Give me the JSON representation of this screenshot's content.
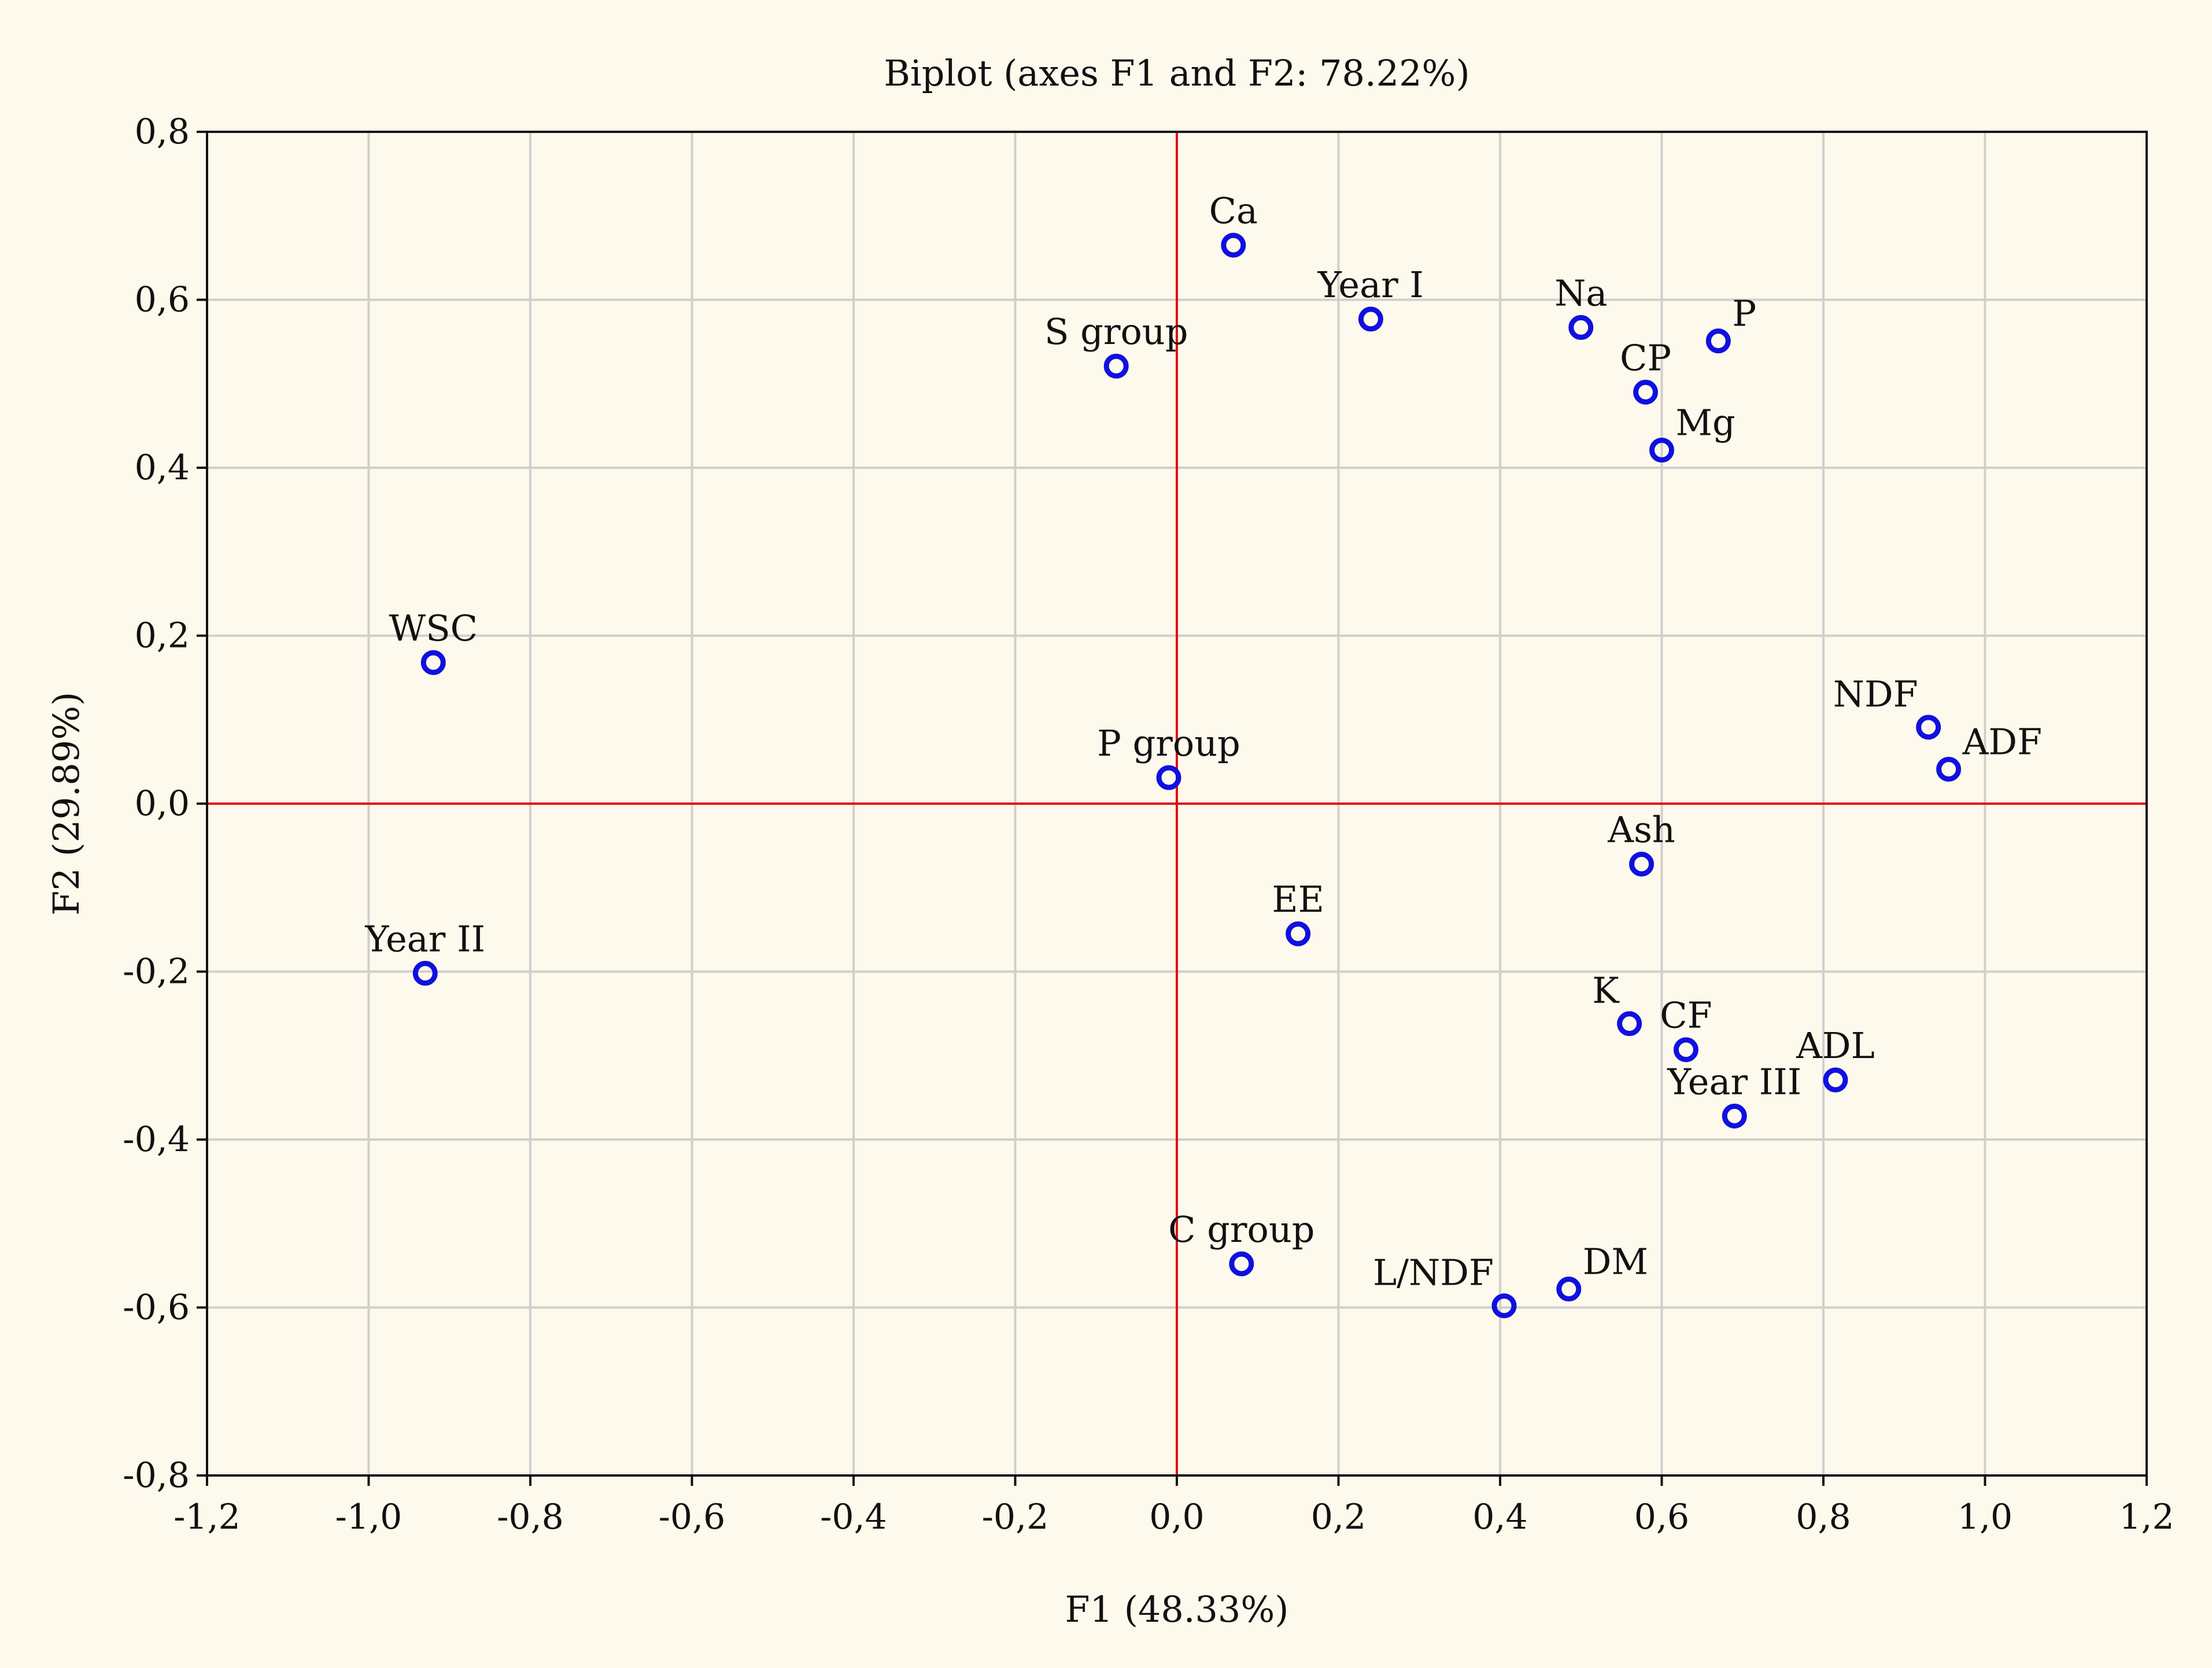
{
  "chart_data": {
    "type": "scatter",
    "title": "Biplot (axes F1 and F2: 78.22%)",
    "xlabel": "F1 (48.33%)",
    "ylabel": "F2 (29.89%)",
    "xlim": [
      -1.2,
      1.2
    ],
    "ylim": [
      -0.8,
      0.8
    ],
    "xticks": [
      -1.2,
      -1.0,
      -0.8,
      -0.6,
      -0.4,
      -0.2,
      0.0,
      0.2,
      0.4,
      0.6,
      0.8,
      1.0,
      1.2
    ],
    "yticks": [
      -0.8,
      -0.6,
      -0.4,
      -0.2,
      0.0,
      0.2,
      0.4,
      0.6,
      0.8
    ],
    "xtick_labels": [
      "-1,2",
      "-1,0",
      "-0,8",
      "-0,6",
      "-0,4",
      "-0,2",
      "0,0",
      "0,2",
      "0,4",
      "0,6",
      "0,8",
      "1,0",
      "1,2"
    ],
    "ytick_labels": [
      "-0,8",
      "-0,6",
      "-0,4",
      "-0,2",
      "0,0",
      "0,2",
      "0,4",
      "0,6",
      "0,8"
    ],
    "grid": true,
    "reference_lines": {
      "x": 0.0,
      "y": 0.0,
      "color": "#e01010"
    },
    "marker_color": "#1010e0",
    "points": [
      {
        "label": "Ca",
        "x": 0.07,
        "y": 0.665,
        "label_pos": "above"
      },
      {
        "label": "Year I",
        "x": 0.24,
        "y": 0.577,
        "label_pos": "above"
      },
      {
        "label": "Na",
        "x": 0.5,
        "y": 0.567,
        "label_pos": "above"
      },
      {
        "label": "P",
        "x": 0.67,
        "y": 0.551,
        "label_pos": "upper-right"
      },
      {
        "label": "CP",
        "x": 0.58,
        "y": 0.49,
        "label_pos": "above"
      },
      {
        "label": "Mg",
        "x": 0.6,
        "y": 0.421,
        "label_pos": "upper-right"
      },
      {
        "label": "S group",
        "x": -0.075,
        "y": 0.521,
        "label_pos": "above"
      },
      {
        "label": "WSC",
        "x": -0.92,
        "y": 0.168,
        "label_pos": "above"
      },
      {
        "label": "P group",
        "x": -0.01,
        "y": 0.031,
        "label_pos": "above"
      },
      {
        "label": "NDF",
        "x": 0.93,
        "y": 0.091,
        "label_pos": "upper-left"
      },
      {
        "label": "ADF",
        "x": 0.955,
        "y": 0.041,
        "label_pos": "upper-right"
      },
      {
        "label": "Ash",
        "x": 0.575,
        "y": -0.072,
        "label_pos": "above"
      },
      {
        "label": "EE",
        "x": 0.15,
        "y": -0.155,
        "label_pos": "above"
      },
      {
        "label": "Year II",
        "x": -0.93,
        "y": -0.202,
        "label_pos": "above"
      },
      {
        "label": "K",
        "x": 0.56,
        "y": -0.262,
        "label_pos": "upper-left"
      },
      {
        "label": "CF",
        "x": 0.63,
        "y": -0.293,
        "label_pos": "above"
      },
      {
        "label": "ADL",
        "x": 0.815,
        "y": -0.329,
        "label_pos": "above"
      },
      {
        "label": "Year III",
        "x": 0.69,
        "y": -0.372,
        "label_pos": "above"
      },
      {
        "label": "C group",
        "x": 0.08,
        "y": -0.548,
        "label_pos": "above"
      },
      {
        "label": "L/NDF",
        "x": 0.405,
        "y": -0.598,
        "label_pos": "upper-left"
      },
      {
        "label": "DM",
        "x": 0.485,
        "y": -0.578,
        "label_pos": "upper-right"
      }
    ]
  }
}
